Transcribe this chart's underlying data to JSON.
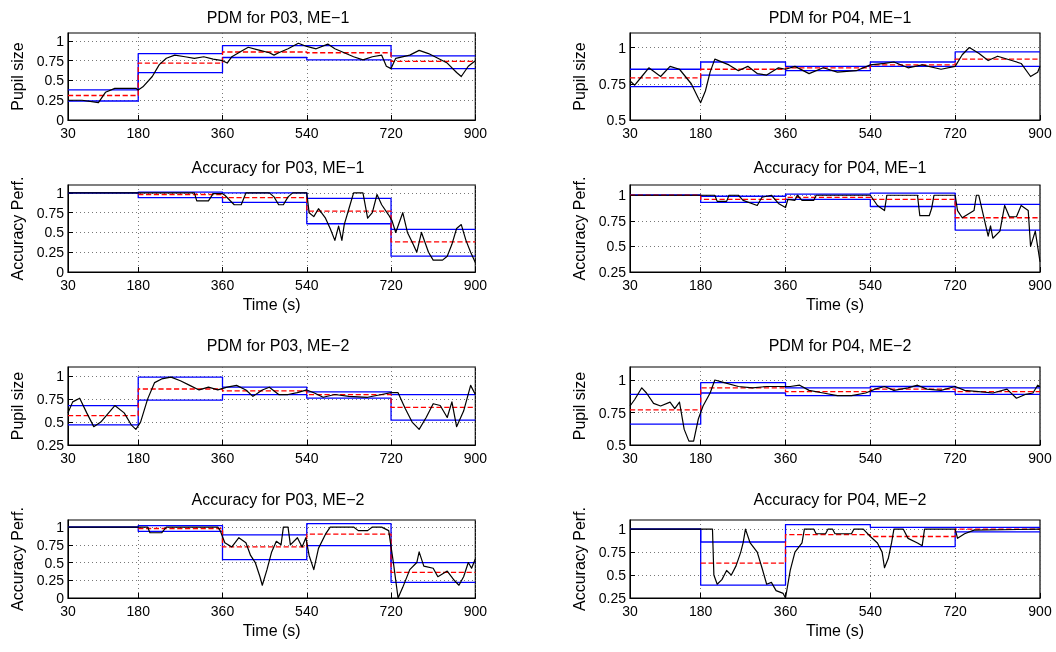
{
  "chart_data": [
    {
      "type": "line",
      "title": "PDM for P03, ME−1",
      "ylabel": "Pupil size",
      "xlim": [
        30,
        900
      ],
      "xticks": [
        30,
        180,
        360,
        540,
        720,
        900
      ],
      "ylim": [
        0,
        1.1
      ],
      "yticks": [
        0,
        0.25,
        0.5,
        0.75,
        1
      ],
      "grid": true,
      "series": [
        {
          "color": "#000000",
          "x": [
            30,
            60,
            95,
            110,
            130,
            175,
            180,
            190,
            210,
            225,
            240,
            258,
            280,
            300,
            320,
            340,
            360,
            370,
            380,
            400,
            415,
            440,
            460,
            470,
            480,
            500,
            522,
            540,
            560,
            585,
            600,
            620,
            640,
            660,
            680,
            700,
            710,
            720,
            730,
            760,
            780,
            800,
            820,
            840,
            860,
            870,
            885,
            900
          ],
          "values": [
            0.25,
            0.25,
            0.22,
            0.35,
            0.4,
            0.4,
            0.38,
            0.42,
            0.55,
            0.7,
            0.78,
            0.82,
            0.8,
            0.78,
            0.8,
            0.77,
            0.75,
            0.72,
            0.8,
            0.87,
            0.92,
            0.88,
            0.85,
            0.82,
            0.85,
            0.9,
            0.97,
            0.93,
            0.9,
            0.96,
            0.9,
            0.85,
            0.8,
            0.76,
            0.8,
            0.82,
            0.68,
            0.65,
            0.78,
            0.82,
            0.88,
            0.84,
            0.78,
            0.72,
            0.6,
            0.55,
            0.68,
            0.75
          ]
        },
        {
          "type": "step",
          "color": "#0000ff",
          "x": [
            30,
            180,
            360,
            540,
            720,
            900
          ],
          "values": [
            0.38,
            0.84,
            0.94,
            0.94,
            0.81,
            0.81
          ]
        },
        {
          "type": "step",
          "color": "#0000ff",
          "x": [
            30,
            180,
            360,
            540,
            720,
            900
          ],
          "values": [
            0.24,
            0.6,
            0.79,
            0.76,
            0.65,
            0.65
          ]
        },
        {
          "type": "step",
          "color": "#ff0000",
          "line_style": "dashed",
          "x": [
            30,
            180,
            360,
            540,
            720,
            900
          ],
          "values": [
            0.31,
            0.72,
            0.86,
            0.85,
            0.74,
            0.74
          ]
        }
      ]
    },
    {
      "type": "line",
      "title": "PDM for P04, ME−1",
      "ylabel": "Pupil size",
      "xlim": [
        30,
        900
      ],
      "xticks": [
        30,
        180,
        360,
        540,
        720,
        900
      ],
      "ylim": [
        0.5,
        1.1
      ],
      "yticks": [
        0.5,
        0.75,
        1
      ],
      "grid": true,
      "series": [
        {
          "color": "#000000",
          "x": [
            30,
            40,
            55,
            70,
            95,
            115,
            135,
            160,
            175,
            180,
            190,
            200,
            210,
            240,
            260,
            280,
            300,
            320,
            345,
            360,
            380,
            410,
            440,
            470,
            510,
            540,
            570,
            590,
            620,
            650,
            690,
            720,
            735,
            750,
            770,
            790,
            810,
            840,
            860,
            880,
            895,
            900
          ],
          "values": [
            0.77,
            0.74,
            0.8,
            0.86,
            0.8,
            0.87,
            0.85,
            0.75,
            0.65,
            0.62,
            0.7,
            0.83,
            0.92,
            0.88,
            0.84,
            0.87,
            0.82,
            0.81,
            0.86,
            0.85,
            0.87,
            0.82,
            0.86,
            0.83,
            0.84,
            0.88,
            0.89,
            0.9,
            0.86,
            0.88,
            0.85,
            0.87,
            0.95,
            1.0,
            0.96,
            0.91,
            0.94,
            0.91,
            0.89,
            0.8,
            0.83,
            0.87
          ]
        },
        {
          "type": "step",
          "color": "#0000ff",
          "x": [
            30,
            180,
            360,
            540,
            720,
            900
          ],
          "values": [
            0.85,
            0.9,
            0.87,
            0.9,
            0.97,
            0.97
          ]
        },
        {
          "type": "step",
          "color": "#0000ff",
          "x": [
            30,
            180,
            360,
            540,
            720,
            900
          ],
          "values": [
            0.73,
            0.81,
            0.84,
            0.87,
            0.87,
            0.87
          ]
        },
        {
          "type": "step",
          "color": "#ff0000",
          "line_style": "dashed",
          "x": [
            30,
            180,
            360,
            540,
            720,
            900
          ],
          "values": [
            0.79,
            0.85,
            0.86,
            0.88,
            0.92,
            0.92
          ]
        }
      ]
    },
    {
      "type": "line",
      "title": "Accuracy for P03, ME−1",
      "xlabel": "Time (s)",
      "ylabel": "Accuracy Perf.",
      "xlim": [
        30,
        900
      ],
      "xticks": [
        30,
        180,
        360,
        540,
        720,
        900
      ],
      "ylim": [
        0,
        1.1
      ],
      "yticks": [
        0,
        0.25,
        0.5,
        0.75,
        1
      ],
      "grid": true,
      "series": [
        {
          "color": "#000000",
          "x": [
            30,
            300,
            305,
            330,
            340,
            360,
            365,
            385,
            400,
            410,
            460,
            470,
            480,
            490,
            500,
            510,
            540,
            545,
            555,
            565,
            580,
            590,
            600,
            608,
            615,
            620,
            630,
            640,
            660,
            670,
            680,
            690,
            700,
            715,
            722,
            730,
            745,
            755,
            765,
            775,
            785,
            800,
            810,
            830,
            840,
            850,
            860,
            870,
            880,
            890,
            900
          ],
          "values": [
            1,
            1,
            0.9,
            0.9,
            0.99,
            0.99,
            0.97,
            0.85,
            0.85,
            1,
            1,
            0.95,
            0.85,
            0.85,
            0.95,
            1,
            1,
            0.75,
            0.7,
            0.8,
            0.68,
            0.55,
            0.4,
            0.58,
            0.4,
            0.6,
            0.8,
            1,
            1,
            0.68,
            0.75,
            0.98,
            0.85,
            0.72,
            0.65,
            0.5,
            0.75,
            0.5,
            0.38,
            0.25,
            0.5,
            0.25,
            0.15,
            0.15,
            0.2,
            0.35,
            0.55,
            0.6,
            0.4,
            0.25,
            0.12
          ]
        },
        {
          "type": "step",
          "color": "#0000ff",
          "x": [
            30,
            180,
            360,
            540,
            720,
            900
          ],
          "values": [
            1,
            1.01,
            1,
            0.93,
            0.54,
            0.54
          ]
        },
        {
          "type": "step",
          "color": "#0000ff",
          "x": [
            30,
            180,
            360,
            540,
            720,
            900
          ],
          "values": [
            1,
            0.94,
            0.88,
            0.61,
            0.2,
            0.2
          ]
        },
        {
          "type": "step",
          "color": "#ff0000",
          "line_style": "dashed",
          "x": [
            180,
            360,
            540,
            720,
            900
          ],
          "values": [
            0.98,
            0.94,
            0.77,
            0.38,
            0.38
          ]
        }
      ]
    },
    {
      "type": "line",
      "title": "Accuracy for P04, ME−1",
      "xlabel": "Time (s)",
      "ylabel": "Accuracy Perf.",
      "xlim": [
        30,
        900
      ],
      "xticks": [
        30,
        180,
        360,
        540,
        720,
        900
      ],
      "ylim": [
        0.25,
        1.1
      ],
      "yticks": [
        0.25,
        0.5,
        0.75,
        1
      ],
      "grid": true,
      "series": [
        {
          "color": "#000000",
          "x": [
            30,
            210,
            215,
            235,
            240,
            260,
            270,
            300,
            310,
            330,
            345,
            360,
            365,
            380,
            385,
            395,
            420,
            425,
            540,
            555,
            570,
            575,
            640,
            645,
            665,
            670,
            675,
            720,
            725,
            735,
            760,
            765,
            770,
            780,
            790,
            795,
            800,
            815,
            825,
            835,
            850,
            860,
            875,
            880,
            890,
            900
          ],
          "values": [
            1,
            1,
            0.94,
            0.94,
            1,
            1,
            0.95,
            0.9,
            0.98,
            1,
            0.92,
            0.88,
            0.96,
            0.95,
            1,
            0.95,
            0.95,
            1,
            1,
            0.9,
            0.85,
            1,
            1,
            0.8,
            0.8,
            0.87,
            1,
            1,
            0.85,
            0.78,
            0.85,
            1,
            1,
            0.8,
            0.6,
            0.7,
            0.58,
            0.65,
            0.9,
            0.79,
            0.79,
            0.9,
            0.85,
            0.5,
            0.65,
            0.35
          ]
        },
        {
          "type": "step",
          "color": "#0000ff",
          "x": [
            30,
            180,
            360,
            540,
            720,
            900
          ],
          "values": [
            1,
            0.99,
            1.01,
            1.02,
            0.91,
            0.91
          ]
        },
        {
          "type": "step",
          "color": "#0000ff",
          "x": [
            30,
            180,
            360,
            540,
            720,
            900
          ],
          "values": [
            1,
            0.93,
            0.96,
            0.89,
            0.66,
            0.66
          ]
        },
        {
          "type": "step",
          "color": "#ff0000",
          "line_style": "dashed",
          "x": [
            30,
            180,
            360,
            540,
            720,
            900
          ],
          "values": [
            1,
            0.96,
            0.98,
            0.96,
            0.78,
            0.78
          ]
        }
      ]
    },
    {
      "type": "line",
      "title": "PDM for P03, ME−2",
      "ylabel": "Pupil size",
      "xlim": [
        30,
        900
      ],
      "xticks": [
        30,
        180,
        360,
        540,
        720,
        900
      ],
      "ylim": [
        0.25,
        1.1
      ],
      "yticks": [
        0.25,
        0.5,
        0.75,
        1
      ],
      "grid": true,
      "series": [
        {
          "color": "#000000",
          "x": [
            30,
            40,
            55,
            70,
            85,
            100,
            120,
            130,
            150,
            165,
            175,
            185,
            200,
            215,
            230,
            250,
            270,
            290,
            310,
            330,
            350,
            370,
            390,
            410,
            425,
            445,
            460,
            480,
            500,
            520,
            540,
            555,
            575,
            600,
            630,
            670,
            700,
            720,
            735,
            750,
            765,
            780,
            795,
            810,
            825,
            840,
            850,
            860,
            875,
            890,
            900
          ],
          "values": [
            0.6,
            0.72,
            0.76,
            0.6,
            0.45,
            0.5,
            0.62,
            0.68,
            0.6,
            0.47,
            0.42,
            0.5,
            0.75,
            0.93,
            0.97,
            0.99,
            0.95,
            0.9,
            0.85,
            0.88,
            0.85,
            0.88,
            0.9,
            0.85,
            0.78,
            0.85,
            0.88,
            0.8,
            0.8,
            0.82,
            0.85,
            0.82,
            0.77,
            0.8,
            0.78,
            0.77,
            0.8,
            0.82,
            0.82,
            0.65,
            0.5,
            0.42,
            0.55,
            0.7,
            0.68,
            0.55,
            0.72,
            0.45,
            0.62,
            0.9,
            0.8
          ]
        },
        {
          "type": "step",
          "color": "#0000ff",
          "x": [
            30,
            180,
            360,
            540,
            720,
            900
          ],
          "values": [
            0.68,
            0.99,
            0.88,
            0.83,
            0.8,
            0.8
          ]
        },
        {
          "type": "step",
          "color": "#0000ff",
          "x": [
            30,
            180,
            360,
            540,
            720,
            900
          ],
          "values": [
            0.47,
            0.74,
            0.8,
            0.76,
            0.52,
            0.52
          ]
        },
        {
          "type": "step",
          "color": "#ff0000",
          "line_style": "dashed",
          "x": [
            30,
            180,
            360,
            540,
            720,
            900
          ],
          "values": [
            0.57,
            0.86,
            0.84,
            0.8,
            0.66,
            0.66
          ]
        }
      ]
    },
    {
      "type": "line",
      "title": "PDM for P04, ME−2",
      "ylabel": "Pupil size",
      "xlim": [
        30,
        900
      ],
      "xticks": [
        30,
        180,
        360,
        540,
        720,
        900
      ],
      "ylim": [
        0.5,
        1.1
      ],
      "yticks": [
        0.5,
        0.75,
        1
      ],
      "grid": true,
      "series": [
        {
          "color": "#000000",
          "x": [
            30,
            40,
            55,
            65,
            80,
            95,
            115,
            125,
            135,
            145,
            155,
            165,
            175,
            185,
            200,
            210,
            230,
            260,
            290,
            320,
            345,
            370,
            390,
            410,
            440,
            470,
            500,
            530,
            550,
            570,
            590,
            620,
            640,
            660,
            690,
            720,
            740,
            770,
            800,
            830,
            850,
            870,
            885,
            895,
            900
          ],
          "values": [
            0.8,
            0.85,
            0.94,
            0.9,
            0.82,
            0.8,
            0.83,
            0.78,
            0.83,
            0.62,
            0.53,
            0.53,
            0.7,
            0.8,
            0.9,
            1.0,
            0.98,
            0.95,
            0.94,
            0.95,
            0.95,
            0.95,
            0.96,
            0.92,
            0.9,
            0.88,
            0.88,
            0.9,
            0.93,
            0.95,
            0.92,
            0.94,
            0.96,
            0.93,
            0.92,
            0.95,
            0.92,
            0.91,
            0.9,
            0.93,
            0.86,
            0.89,
            0.9,
            0.96,
            0.95
          ]
        },
        {
          "type": "step",
          "color": "#0000ff",
          "x": [
            30,
            180,
            360,
            540,
            720,
            900
          ],
          "values": [
            0.89,
            0.98,
            0.94,
            0.95,
            0.94,
            0.94
          ]
        },
        {
          "type": "step",
          "color": "#0000ff",
          "x": [
            30,
            180,
            360,
            540,
            720,
            900
          ],
          "values": [
            0.66,
            0.9,
            0.88,
            0.91,
            0.89,
            0.89
          ]
        },
        {
          "type": "step",
          "color": "#ff0000",
          "line_style": "dashed",
          "x": [
            30,
            180,
            360,
            540,
            720,
            900
          ],
          "values": [
            0.77,
            0.94,
            0.91,
            0.93,
            0.91,
            0.91
          ]
        }
      ]
    },
    {
      "type": "line",
      "title": "Accuracy for P03, ME−2",
      "xlabel": "Time (s)",
      "ylabel": "Accuracy Perf.",
      "xlim": [
        30,
        900
      ],
      "xticks": [
        30,
        180,
        360,
        540,
        720,
        900
      ],
      "ylim": [
        0,
        1.1
      ],
      "yticks": [
        0,
        0.25,
        0.5,
        0.75,
        1
      ],
      "grid": true,
      "series": [
        {
          "color": "#000000",
          "x": [
            30,
            200,
            205,
            230,
            240,
            350,
            355,
            365,
            380,
            395,
            410,
            420,
            430,
            440,
            445,
            455,
            465,
            475,
            485,
            490,
            500,
            505,
            520,
            530,
            538,
            545,
            555,
            565,
            580,
            590,
            640,
            650,
            670,
            680,
            700,
            715,
            725,
            735,
            745,
            760,
            775,
            780,
            790,
            810,
            820,
            840,
            855,
            865,
            875,
            885,
            892,
            900
          ],
          "values": [
            1,
            1,
            0.92,
            0.92,
            1,
            1,
            0.95,
            0.78,
            0.72,
            0.85,
            0.78,
            0.6,
            0.5,
            0.3,
            0.18,
            0.4,
            0.65,
            0.8,
            0.75,
            1,
            1,
            0.75,
            0.85,
            0.72,
            0.85,
            0.6,
            0.4,
            0.7,
            0.9,
            1,
            1,
            0.95,
            0.95,
            1,
            1,
            0.95,
            0.5,
            0,
            0.15,
            0.4,
            0.5,
            0.65,
            0.45,
            0.42,
            0.3,
            0.38,
            0.25,
            0.18,
            0.3,
            0.5,
            0.42,
            0.55
          ]
        },
        {
          "type": "step",
          "color": "#0000ff",
          "x": [
            30,
            180,
            360,
            540,
            720,
            900
          ],
          "values": [
            1,
            1.02,
            0.89,
            1.05,
            0.5,
            0.5
          ]
        },
        {
          "type": "step",
          "color": "#0000ff",
          "x": [
            30,
            180,
            360,
            540,
            720,
            900
          ],
          "values": [
            1,
            0.94,
            0.54,
            0.74,
            0.22,
            0.22
          ]
        },
        {
          "type": "step",
          "color": "#ff0000",
          "line_style": "dashed",
          "x": [
            180,
            360,
            540,
            720,
            900
          ],
          "values": [
            0.98,
            0.72,
            0.9,
            0.36,
            0.36
          ]
        }
      ]
    },
    {
      "type": "line",
      "title": "Accuracy for P04, ME−2",
      "xlabel": "Time (s)",
      "ylabel": "Accuracy Perf.",
      "xlim": [
        30,
        900
      ],
      "xticks": [
        30,
        180,
        360,
        540,
        720,
        900
      ],
      "ylim": [
        0.25,
        1.1
      ],
      "yticks": [
        0.25,
        0.5,
        0.75,
        1
      ],
      "grid": true,
      "series": [
        {
          "color": "#000000",
          "x": [
            30,
            205,
            208,
            215,
            225,
            235,
            245,
            255,
            265,
            270,
            275,
            285,
            300,
            310,
            320,
            330,
            340,
            355,
            360,
            370,
            380,
            395,
            400,
            420,
            425,
            445,
            450,
            460,
            465,
            500,
            505,
            525,
            540,
            555,
            565,
            570,
            578,
            585,
            590,
            610,
            620,
            640,
            650,
            655,
            720,
            725,
            740,
            760,
            900
          ],
          "values": [
            1,
            1,
            0.5,
            0.4,
            0.45,
            0.55,
            0.5,
            0.6,
            0.75,
            0.85,
            1,
            0.85,
            0.75,
            0.58,
            0.4,
            0.42,
            0.33,
            0.3,
            0.25,
            0.55,
            0.75,
            0.85,
            1,
            1,
            0.95,
            0.95,
            1,
            1,
            0.95,
            0.95,
            1,
            1,
            0.92,
            0.85,
            0.75,
            0.58,
            0.68,
            0.85,
            1,
            1,
            0.9,
            0.85,
            0.82,
            1,
            1,
            0.9,
            0.95,
            0.99,
            1
          ]
        },
        {
          "type": "step",
          "color": "#0000ff",
          "x": [
            30,
            180,
            360,
            540,
            720,
            900
          ],
          "values": [
            1,
            0.86,
            1.05,
            1.02,
            1.02,
            1.02
          ]
        },
        {
          "type": "step",
          "color": "#0000ff",
          "x": [
            30,
            180,
            360,
            540,
            720,
            900
          ],
          "values": [
            1,
            0.39,
            0.81,
            0.81,
            0.97,
            0.97
          ]
        },
        {
          "type": "step",
          "color": "#ff0000",
          "line_style": "dashed",
          "x": [
            180,
            360,
            540,
            720,
            900
          ],
          "values": [
            0.63,
            0.94,
            0.92,
            1,
            1
          ]
        }
      ]
    }
  ]
}
